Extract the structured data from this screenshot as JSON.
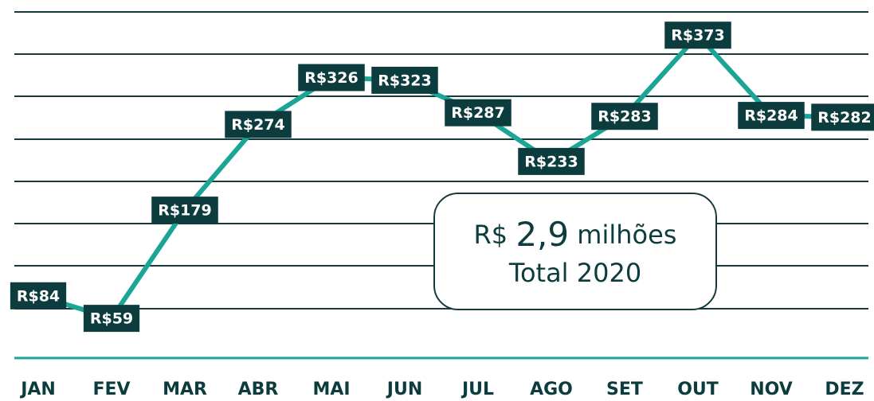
{
  "chart_data": {
    "type": "line",
    "categories": [
      "JAN",
      "FEV",
      "MAR",
      "ABR",
      "MAI",
      "JUN",
      "JUL",
      "AGO",
      "SET",
      "OUT",
      "NOV",
      "DEZ"
    ],
    "series": [
      {
        "color": "#1ba596",
        "values": [
          84,
          59,
          179,
          274,
          326,
          323,
          287,
          233,
          283,
          373,
          284,
          282
        ],
        "value_labels": [
          "R$84",
          "R$59",
          "R$179",
          "R$274",
          "R$326",
          "R$323",
          "R$287",
          "R$233",
          "R$283",
          "R$373",
          "R$284",
          "R$282"
        ]
      }
    ],
    "ylim": [
      0,
      412
    ],
    "label_color": "#0c3c3e",
    "annotation": {
      "prefix": "R$",
      "value": "2,9",
      "suffix": "milhões",
      "caption": "Total 2020"
    }
  }
}
